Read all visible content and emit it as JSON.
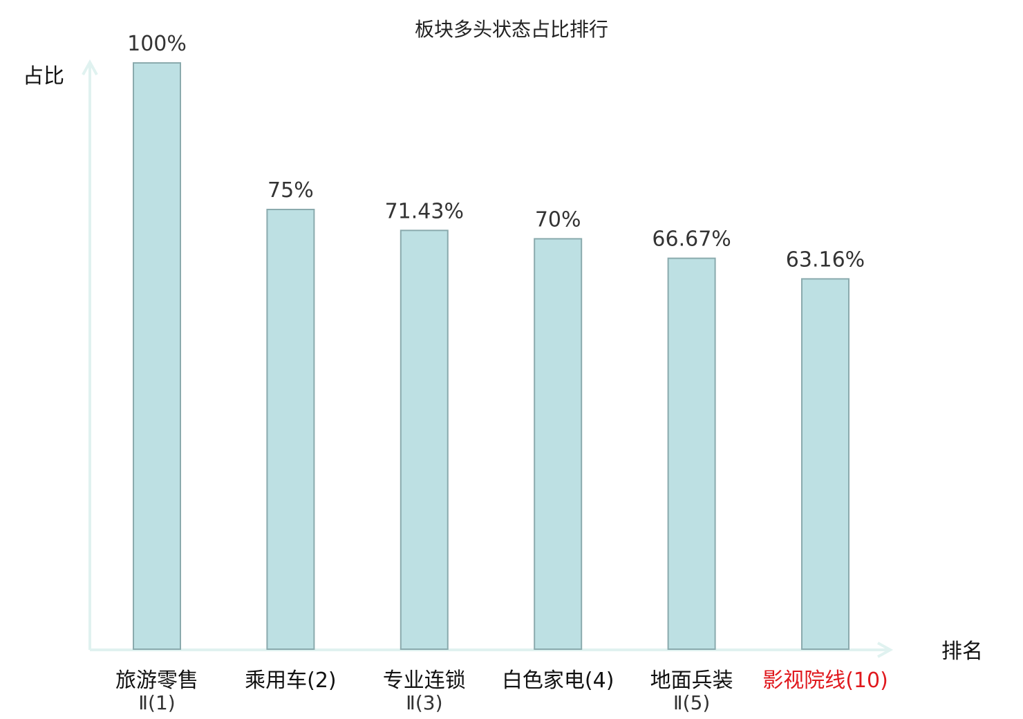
{
  "chart_data": {
    "type": "bar",
    "title": "板块多头状态占比排行",
    "ylabel": "占比",
    "xlabel": "排名",
    "ylim": [
      0,
      100
    ],
    "grid": false,
    "categories": [
      {
        "line1": "旅游零售",
        "line2": "Ⅱ(1)",
        "highlight": false
      },
      {
        "line1": "乘用车(2)",
        "line2": "",
        "highlight": false
      },
      {
        "line1": "专业连锁",
        "line2": "Ⅱ(3)",
        "highlight": false
      },
      {
        "line1": "白色家电(4)",
        "line2": "",
        "highlight": false
      },
      {
        "line1": "地面兵装",
        "line2": "Ⅱ(5)",
        "highlight": false
      },
      {
        "line1": "影视院线(10)",
        "line2": "",
        "highlight": true
      }
    ],
    "values": [
      100,
      75,
      71.43,
      70,
      66.67,
      63.16
    ],
    "value_labels": [
      "100%",
      "75%",
      "71.43%",
      "70%",
      "66.67%",
      "63.16%"
    ],
    "colors": {
      "bar_fill": "#bde0e3",
      "bar_stroke": "#8aaaad",
      "axis": "#e0f2f0",
      "label_text": "#111111",
      "highlight_text": "#e0191e"
    }
  }
}
